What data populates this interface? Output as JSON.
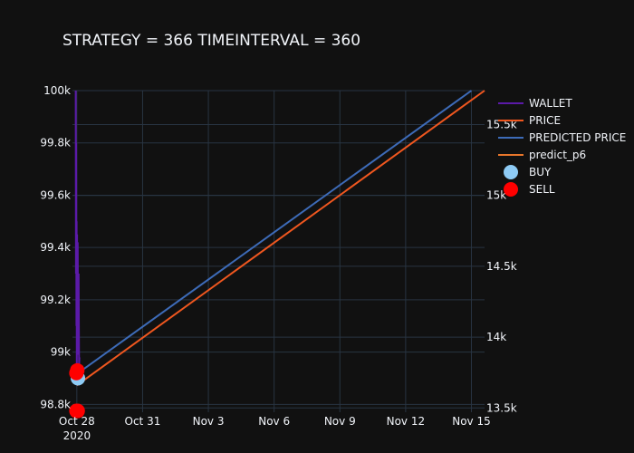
{
  "chart_data": {
    "type": "line",
    "title": "STRATEGY = 366 TIMEINTERVAL = 360",
    "xlabel": "",
    "ylabel": "",
    "x_axis": {
      "ticks": [
        "2020-10-28",
        "2020-10-31",
        "2020-11-03",
        "2020-11-06",
        "2020-11-09",
        "2020-11-12",
        "2020-11-15"
      ],
      "tick_labels": [
        "Oct 28",
        "Oct 31",
        "Nov 3",
        "Nov 6",
        "Nov 9",
        "Nov 12",
        "Nov 15"
      ],
      "year_label": "2020",
      "range": [
        "2020-10-27.8",
        "2020-11-15.6"
      ]
    },
    "y_left": {
      "ticks": [
        98800,
        99000,
        99200,
        99400,
        99600,
        99800,
        100000
      ],
      "tick_labels": [
        "98.8k",
        "99k",
        "99.2k",
        "99.4k",
        "99.6k",
        "99.8k",
        "100k"
      ],
      "range": [
        98770,
        100000
      ]
    },
    "y_right": {
      "ticks": [
        13500,
        14000,
        14500,
        15000,
        15500
      ],
      "tick_labels": [
        "13.5k",
        "14k",
        "14.5k",
        "15k",
        "15.5k"
      ],
      "range": [
        13470,
        15740
      ]
    },
    "grid": true,
    "legend_position": "top-right",
    "series": [
      {
        "name": "WALLET",
        "axis": "left",
        "color": "#5b1aa8",
        "points": [
          [
            "2020-10-27.95",
            100000
          ],
          [
            "2020-10-27.96",
            99300
          ],
          [
            "2020-10-27.97",
            99800
          ],
          [
            "2020-10-27.98",
            99100
          ],
          [
            "2020-10-27.99",
            99500
          ],
          [
            "2020-10-28.00",
            98900
          ],
          [
            "2020-10-28.01",
            99450
          ],
          [
            "2020-10-28.02",
            99000
          ],
          [
            "2020-10-28.04",
            99420
          ],
          [
            "2020-10-28.06",
            98990
          ],
          [
            "2020-10-28.08",
            99300
          ],
          [
            "2020-10-28.10",
            98950
          ],
          [
            "2020-10-28.12",
            98980
          ]
        ]
      },
      {
        "name": "PRICE",
        "axis": "right",
        "color": "#f0571f",
        "points": [
          [
            "2020-10-28.00",
            13660
          ],
          [
            "2020-11-15.60",
            15740
          ]
        ]
      },
      {
        "name": "PREDICTED PRICE",
        "axis": "right",
        "color": "#3d6bb8",
        "points": [
          [
            "2020-10-28.00",
            13740
          ],
          [
            "2020-11-15.00",
            15740
          ]
        ]
      },
      {
        "name": "predict_p6",
        "axis": "right",
        "color": "#e8762b",
        "points": []
      }
    ],
    "markers": [
      {
        "name": "BUY",
        "axis": "left",
        "color": "#8ecbf5",
        "points": [
          [
            "2020-10-28.05",
            98900
          ]
        ]
      },
      {
        "name": "SELL",
        "axis": "left",
        "color": "#ff0000",
        "points": [
          [
            "2020-10-27.98",
            98920
          ],
          [
            "2020-10-28.02",
            98930
          ],
          [
            "2020-10-27.98",
            98775
          ],
          [
            "2020-10-28.04",
            98775
          ]
        ]
      }
    ]
  }
}
